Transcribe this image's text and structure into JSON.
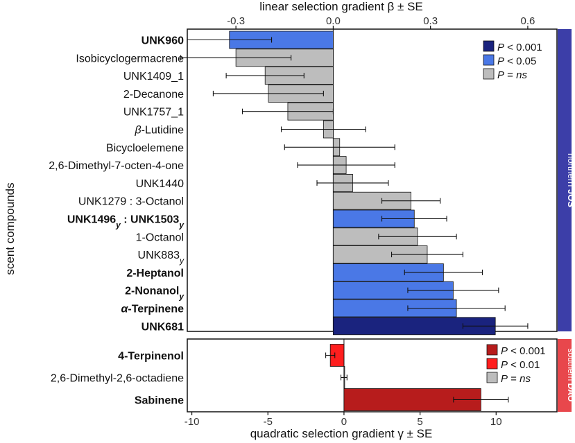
{
  "chart_data": [
    {
      "type": "bar",
      "orientation": "horizontal",
      "panel": "northern JOS",
      "axis_title": "linear selection gradient β ± SE",
      "axis_position": "top",
      "xlim": [
        -0.45,
        0.69
      ],
      "ticks": [
        -0.3,
        0.0,
        0.3,
        0.6
      ],
      "tick_labels": [
        "-0.3",
        "0.0",
        "0.3",
        "0.6"
      ],
      "strip_label": {
        "plain": "northern ",
        "bold": "JOS"
      },
      "strip_color": "#3c3ea8",
      "legend": [
        {
          "label_pre": "P",
          "label_post": " < 0.001",
          "italic_post": false,
          "color": "#1a237e"
        },
        {
          "label_pre": "P",
          "label_post": " < 0.05",
          "italic_post": false,
          "color": "#4a78e6"
        },
        {
          "label_pre": "P",
          "label_post": " = ",
          "italic_tail": "ns",
          "color": "#bdbdbd"
        }
      ],
      "categories": [
        {
          "label": "UNK960",
          "bold": true,
          "value": -0.32,
          "se": 0.13,
          "sig": "p05"
        },
        {
          "label": "Isobicyclogermacrene",
          "bold": false,
          "value": -0.3,
          "se": 0.17,
          "sig": "ns"
        },
        {
          "label": "UNK1409_1",
          "bold": false,
          "value": -0.21,
          "se": 0.12,
          "sig": "ns"
        },
        {
          "label": "2-Decanone",
          "bold": false,
          "value": -0.2,
          "se": 0.17,
          "sig": "ns"
        },
        {
          "label": "UNK1757_1",
          "bold": false,
          "value": -0.14,
          "se": 0.14,
          "sig": "ns"
        },
        {
          "label": "β-Lutidine",
          "bold": false,
          "italic_prefix": "β",
          "label_rest": "-Lutidine",
          "value": -0.03,
          "se": 0.13,
          "sig": "ns"
        },
        {
          "label": "Bicycloelemene",
          "bold": false,
          "value": 0.02,
          "se": 0.17,
          "sig": "ns"
        },
        {
          "label": "2,6-Dimethyl-7-octen-4-one",
          "bold": false,
          "value": 0.04,
          "se": 0.15,
          "sig": "ns"
        },
        {
          "label": "UNK1440",
          "bold": false,
          "value": 0.06,
          "se": 0.11,
          "sig": "ns"
        },
        {
          "label": "UNK1279 : 3-Octanol",
          "bold": false,
          "value": 0.24,
          "se": 0.09,
          "sig": "ns"
        },
        {
          "label": "UNK1496y : UNK1503y",
          "bold": true,
          "parts": [
            {
              "t": "UNK1496"
            },
            {
              "t": "y",
              "sub": true,
              "italic": true
            },
            {
              "t": " : UNK1503"
            },
            {
              "t": "y",
              "sub": true,
              "italic": true
            }
          ],
          "value": 0.25,
          "se": 0.1,
          "sig": "p05"
        },
        {
          "label": "1-Octanol",
          "bold": false,
          "value": 0.26,
          "se": 0.12,
          "sig": "ns"
        },
        {
          "label": "UNK883y",
          "bold": false,
          "parts": [
            {
              "t": "UNK883"
            },
            {
              "t": "y",
              "sub": true,
              "italic": true
            }
          ],
          "value": 0.29,
          "se": 0.11,
          "sig": "ns"
        },
        {
          "label": "2-Heptanol",
          "bold": true,
          "value": 0.34,
          "se": 0.12,
          "sig": "p05"
        },
        {
          "label": "2-Nonanoly",
          "bold": true,
          "parts": [
            {
              "t": "2-Nonanol"
            },
            {
              "t": "y",
              "sub": true,
              "italic": true
            }
          ],
          "value": 0.37,
          "se": 0.14,
          "sig": "p05"
        },
        {
          "label": "α-Terpinene",
          "bold": true,
          "italic_prefix": "α",
          "label_rest": "-Terpinene",
          "value": 0.38,
          "se": 0.15,
          "sig": "p05"
        },
        {
          "label": "UNK681",
          "bold": true,
          "value": 0.5,
          "se": 0.1,
          "sig": "p001"
        }
      ],
      "colors": {
        "p001": "#1a237e",
        "p05": "#4a78e6",
        "ns": "#bdbdbd"
      }
    },
    {
      "type": "bar",
      "orientation": "horizontal",
      "panel": "southern DAO",
      "axis_title": "quadratic selection gradient γ ± SE",
      "axis_position": "bottom",
      "xlim": [
        -10.3,
        14.0
      ],
      "ticks": [
        -10,
        -5,
        0,
        5,
        10
      ],
      "tick_labels": [
        "-10",
        "-5",
        "0",
        "5",
        "10"
      ],
      "strip_label": {
        "plain": "southern ",
        "bold": "DAO"
      },
      "strip_color": "#e8474c",
      "legend": [
        {
          "label_pre": "P",
          "label_post": " < 0.001",
          "italic_post": false,
          "color": "#b71c1c"
        },
        {
          "label_pre": "P",
          "label_post": " < 0.01",
          "italic_post": false,
          "color": "#ff1e1e"
        },
        {
          "label_pre": "P",
          "label_post": " = ",
          "italic_tail": "ns",
          "color": "#bdbdbd"
        }
      ],
      "categories": [
        {
          "label": "4-Terpinenol",
          "bold": true,
          "value": -0.9,
          "se": 0.3,
          "sig": "p01"
        },
        {
          "label": "2,6-Dimethyl-2,6-octadiene",
          "bold": false,
          "value": 0.0,
          "se": 0.2,
          "sig": "ns"
        },
        {
          "label": "Sabinene",
          "bold": true,
          "value": 9.0,
          "se": 1.8,
          "sig": "p001"
        }
      ],
      "colors": {
        "p001": "#b71c1c",
        "p01": "#ff1e1e",
        "ns": "#bdbdbd"
      }
    }
  ],
  "y_axis_title": "scent compounds"
}
